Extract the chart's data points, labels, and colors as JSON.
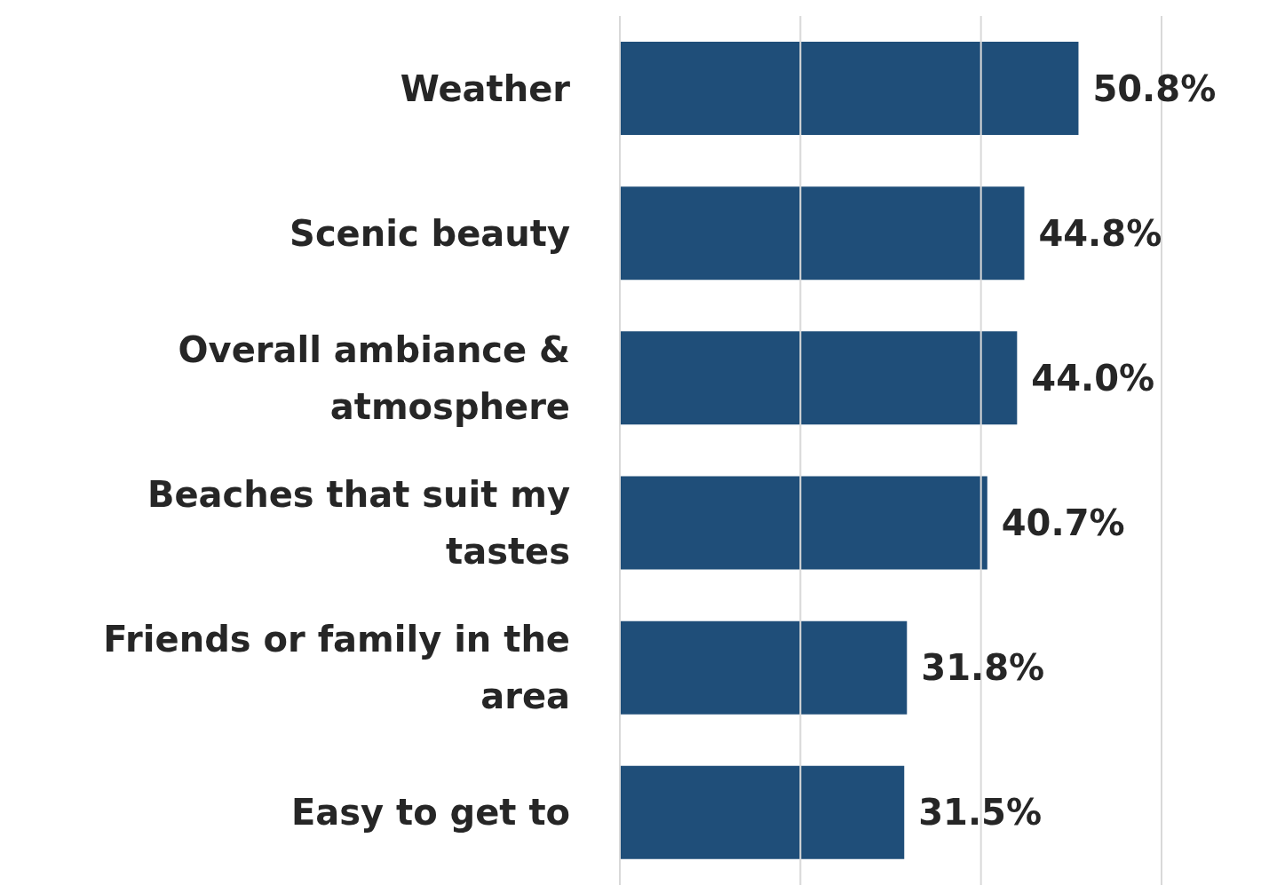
{
  "chart_data": {
    "type": "bar",
    "orientation": "horizontal",
    "categories": [
      "Weather",
      "Scenic beauty",
      "Overall ambiance & atmosphere",
      "Beaches that suit my tastes",
      "Friends or family in the area",
      "Easy to get to"
    ],
    "values": [
      50.8,
      44.8,
      44.0,
      40.7,
      31.8,
      31.5
    ],
    "value_labels": [
      "50.8%",
      "44.8%",
      "44.0%",
      "40.7%",
      "31.8%",
      "31.5%"
    ],
    "color": "#1f4e79",
    "xlim": [
      0,
      60
    ],
    "xticks": [
      {
        "value": 0,
        "label": null
      },
      {
        "value": 20,
        "label": null
      },
      {
        "value": 40,
        "label": null
      },
      {
        "value": 60,
        "label": null
      }
    ],
    "grid": "x",
    "tick_labels": "y"
  }
}
